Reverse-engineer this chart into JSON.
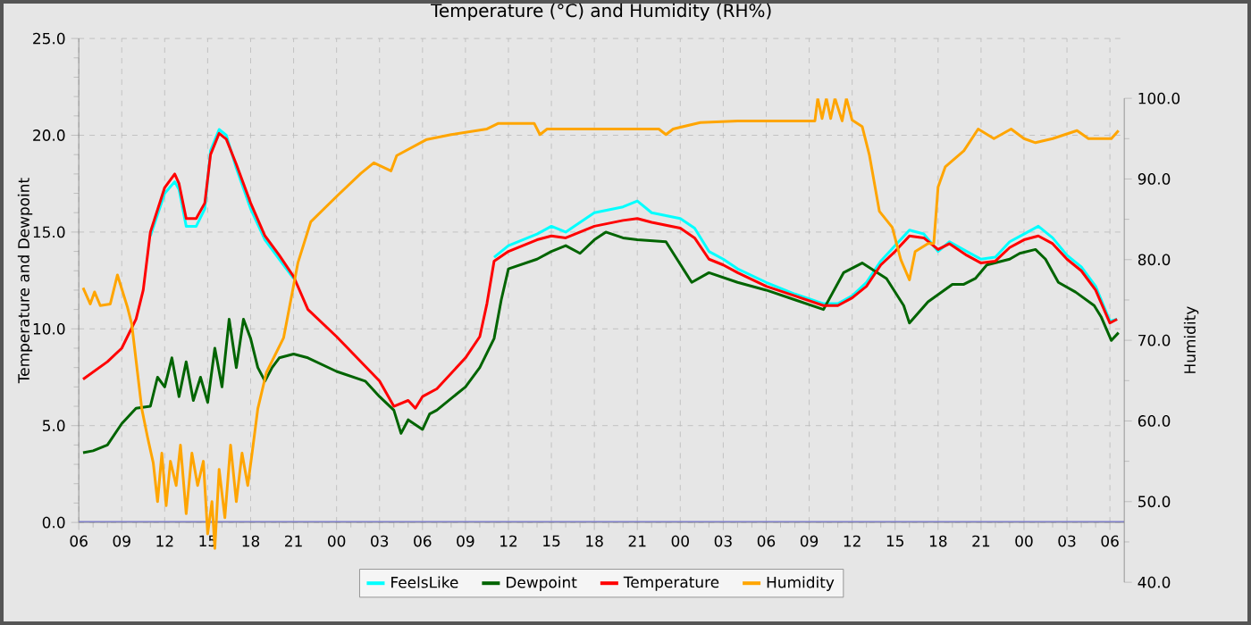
{
  "chart_data": {
    "type": "line",
    "title": "Temperature (°C) and Humidity (RH%)",
    "ylabel": "Temperature and Dewpoint",
    "y2label": "Humidity",
    "x": [
      6.3,
      8,
      9,
      10,
      10.5,
      11,
      12,
      12.7,
      13,
      13.5,
      14.2,
      14.8,
      15.2,
      15.8,
      16.3,
      17,
      18,
      19,
      20,
      21,
      22,
      24,
      27,
      28,
      29,
      29.5,
      30,
      31,
      33,
      34,
      34.5,
      35,
      36,
      38,
      39,
      40,
      42,
      44,
      45,
      46,
      48,
      49,
      50,
      51,
      52,
      54,
      56,
      58,
      59,
      60,
      61,
      62,
      63,
      64,
      65,
      66,
      66.8,
      68,
      69,
      70,
      71,
      72,
      73,
      74,
      75,
      76,
      77,
      78,
      78.5
    ],
    "series": [
      {
        "name": "FeelsLike",
        "color": "#00ffff",
        "values": [
          null,
          null,
          null,
          null,
          null,
          14.8,
          17.0,
          17.6,
          17.2,
          15.3,
          15.3,
          16.2,
          19.2,
          20.3,
          20.0,
          18.3,
          16.2,
          14.6,
          13.6,
          12.6,
          null,
          null,
          null,
          null,
          null,
          null,
          null,
          null,
          null,
          null,
          null,
          13.7,
          14.3,
          14.9,
          15.3,
          15.0,
          16.0,
          16.3,
          16.6,
          16.0,
          15.7,
          15.2,
          14.0,
          13.6,
          13.1,
          12.4,
          11.8,
          11.3,
          11.3,
          11.7,
          12.4,
          13.5,
          14.3,
          15.1,
          14.9,
          14.0,
          14.5,
          14.0,
          13.6,
          13.7,
          14.5,
          14.9,
          15.3,
          14.7,
          13.8,
          13.2,
          12.2,
          10.4,
          10.5
        ]
      },
      {
        "name": "Dewpoint",
        "color": "#006400",
        "x": [
          6.3,
          7,
          8,
          9,
          10,
          11,
          11.5,
          12,
          12.5,
          13,
          13.5,
          14,
          14.5,
          15,
          15.5,
          16,
          16.5,
          17,
          17.5,
          18,
          18.5,
          19,
          19.5,
          20,
          21,
          22,
          24,
          26,
          27,
          28,
          28.5,
          29,
          30,
          30.5,
          31,
          33,
          34,
          35,
          35.5,
          36,
          38,
          39,
          40,
          41,
          42,
          42.8,
          44,
          45,
          47,
          48.8,
          50,
          52,
          54,
          56,
          58,
          59.4,
          60.7,
          62.4,
          63.6,
          64,
          65.3,
          67,
          67.8,
          68.6,
          69.4,
          71,
          71.7,
          72.8,
          73.5,
          74.4,
          75.6,
          76.9,
          77.4,
          78.1,
          78.6
        ],
        "values": [
          3.6,
          3.7,
          4.0,
          5.1,
          5.9,
          6.0,
          7.5,
          7.0,
          8.5,
          6.5,
          8.3,
          6.3,
          7.5,
          6.2,
          9.0,
          7.0,
          10.5,
          8.0,
          10.5,
          9.5,
          8.0,
          7.3,
          8.0,
          8.5,
          8.7,
          8.5,
          7.8,
          7.3,
          6.5,
          5.8,
          4.6,
          5.3,
          4.8,
          5.6,
          5.8,
          7.0,
          8.0,
          9.5,
          11.5,
          13.1,
          13.6,
          14.0,
          14.3,
          13.9,
          14.6,
          15.0,
          14.7,
          14.6,
          14.5,
          12.4,
          12.9,
          12.4,
          12.0,
          11.5,
          11.0,
          12.9,
          13.4,
          12.6,
          11.2,
          10.3,
          11.4,
          12.3,
          12.3,
          12.6,
          13.3,
          13.6,
          13.9,
          14.1,
          13.6,
          12.4,
          11.9,
          11.2,
          10.6,
          9.4,
          9.8
        ]
      },
      {
        "name": "Temperature",
        "color": "#ff0000",
        "values": [
          7.4,
          8.3,
          9.0,
          10.5,
          12,
          15,
          17.3,
          18.0,
          17.5,
          15.7,
          15.7,
          16.5,
          19,
          20.1,
          19.8,
          18.5,
          16.5,
          14.8,
          13.8,
          12.7,
          11.0,
          9.6,
          7.3,
          6.0,
          6.3,
          5.9,
          6.5,
          6.9,
          8.5,
          9.6,
          11.3,
          13.5,
          14.0,
          14.6,
          14.8,
          14.7,
          15.3,
          15.6,
          15.7,
          15.5,
          15.2,
          14.7,
          13.6,
          13.3,
          12.9,
          12.2,
          11.7,
          11.2,
          11.2,
          11.6,
          12.2,
          13.3,
          14.0,
          14.8,
          14.7,
          14.1,
          14.4,
          13.8,
          13.4,
          13.5,
          14.2,
          14.6,
          14.8,
          14.4,
          13.6,
          13.0,
          12.0,
          10.3,
          10.5
        ]
      },
      {
        "name": "Humidity",
        "color": "#ffa500",
        "axis": "y2",
        "x": [
          6.3,
          6.8,
          7.1,
          7.5,
          8.2,
          8.7,
          9.4,
          9.7,
          10.1,
          10.4,
          10.8,
          11.2,
          11.5,
          11.8,
          12.1,
          12.4,
          12.8,
          13.1,
          13.5,
          13.9,
          14.3,
          14.7,
          15.0,
          15.3,
          15.5,
          15.8,
          16.2,
          16.6,
          17.0,
          17.4,
          17.8,
          18.1,
          18.5,
          19.1,
          20.3,
          21.3,
          22.2,
          24.1,
          25.7,
          26.6,
          27.8,
          28.2,
          30.3,
          32,
          34.5,
          35.3,
          37.8,
          38.2,
          38.7,
          39.2,
          46.5,
          47,
          47.5,
          49.4,
          52,
          57.4,
          57.6,
          57.9,
          58.2,
          58.5,
          58.8,
          59.3,
          59.6,
          60.0,
          60.7,
          61.2,
          61.9,
          62.8,
          63.4,
          64,
          64.4,
          65.3,
          65.7,
          66.0,
          66.5,
          67.8,
          68.8,
          69.9,
          71.1,
          72.0,
          72.8,
          74,
          75.7,
          76.5,
          78.1,
          78.6
        ],
        "values": [
          76.5,
          74.5,
          76,
          74.3,
          74.5,
          78.1,
          74.1,
          72,
          66,
          61.5,
          58,
          54.8,
          50,
          56,
          49.5,
          55,
          52,
          57,
          48.5,
          56,
          52,
          55,
          46,
          50,
          44.2,
          54,
          48,
          57,
          50,
          56,
          52,
          56,
          61.5,
          66,
          70.3,
          79.6,
          84.7,
          88,
          90.7,
          92,
          91,
          92.9,
          94.9,
          95.5,
          96.2,
          96.9,
          96.9,
          95.5,
          96.2,
          96.2,
          96.2,
          95.5,
          96.2,
          97,
          97.2,
          97.2,
          100,
          97.5,
          100,
          97.5,
          100,
          97.2,
          100,
          97.3,
          96.5,
          93,
          86,
          84,
          80,
          77.5,
          81,
          82,
          82,
          89,
          91.5,
          93.5,
          96.2,
          95,
          96.2,
          95,
          94.5,
          95,
          96,
          95,
          95,
          96
        ]
      }
    ],
    "xlim": [
      6,
      79
    ],
    "xticks": [
      {
        "value": 6,
        "label": "06"
      },
      {
        "value": 9,
        "label": "09"
      },
      {
        "value": 12,
        "label": "12"
      },
      {
        "value": 15,
        "label": "15"
      },
      {
        "value": 18,
        "label": "18"
      },
      {
        "value": 21,
        "label": "21"
      },
      {
        "value": 24,
        "label": "00"
      },
      {
        "value": 27,
        "label": "03"
      },
      {
        "value": 30,
        "label": "06"
      },
      {
        "value": 33,
        "label": "09"
      },
      {
        "value": 36,
        "label": "12"
      },
      {
        "value": 39,
        "label": "15"
      },
      {
        "value": 42,
        "label": "18"
      },
      {
        "value": 45,
        "label": "21"
      },
      {
        "value": 48,
        "label": "00"
      },
      {
        "value": 51,
        "label": "03"
      },
      {
        "value": 54,
        "label": "06"
      },
      {
        "value": 57,
        "label": "09"
      },
      {
        "value": 60,
        "label": "12"
      },
      {
        "value": 63,
        "label": "15"
      },
      {
        "value": 66,
        "label": "18"
      },
      {
        "value": 69,
        "label": "21"
      },
      {
        "value": 72,
        "label": "00"
      },
      {
        "value": 75,
        "label": "03"
      },
      {
        "value": 78,
        "label": "06"
      }
    ],
    "ylim": [
      0,
      25
    ],
    "yticks": [
      {
        "value": 0,
        "label": "0.0"
      },
      {
        "value": 5,
        "label": "5.0"
      },
      {
        "value": 10,
        "label": "10.0"
      },
      {
        "value": 15,
        "label": "15.0"
      },
      {
        "value": 20,
        "label": "20.0"
      },
      {
        "value": 25,
        "label": "25.0"
      }
    ],
    "y2lim": [
      40,
      100
    ],
    "y2ticks": [
      {
        "value": 40,
        "label": "40.0"
      },
      {
        "value": 50,
        "label": "50.0"
      },
      {
        "value": 60,
        "label": "60.0"
      },
      {
        "value": 70,
        "label": "70.0"
      },
      {
        "value": 80,
        "label": "80.0"
      },
      {
        "value": 90,
        "label": "90.0"
      },
      {
        "value": 100,
        "label": "100.0"
      }
    ],
    "ref_lines": [
      {
        "axis": "y",
        "value": 0,
        "color": "#8080c8"
      }
    ],
    "grid": true,
    "legend": "bottom",
    "marker": "none"
  }
}
